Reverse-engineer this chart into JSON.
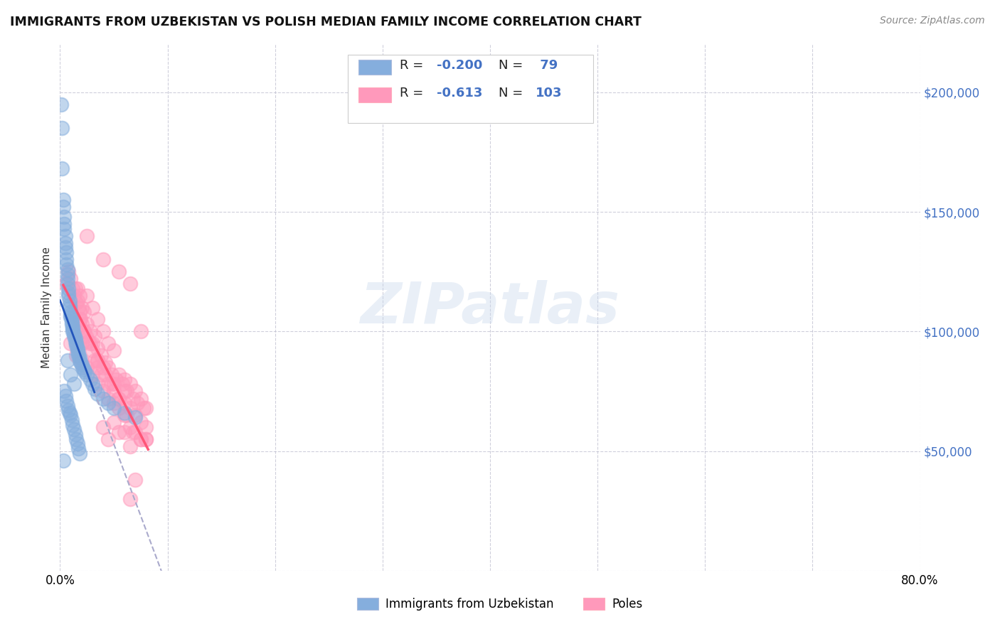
{
  "title": "IMMIGRANTS FROM UZBEKISTAN VS POLISH MEDIAN FAMILY INCOME CORRELATION CHART",
  "source": "Source: ZipAtlas.com",
  "ylabel": "Median Family Income",
  "xlim": [
    0.0,
    0.8
  ],
  "ylim": [
    0,
    220000
  ],
  "yticks": [
    0,
    50000,
    100000,
    150000,
    200000
  ],
  "ytick_labels": [
    "",
    "$50,000",
    "$100,000",
    "$150,000",
    "$200,000"
  ],
  "xticks": [
    0.0,
    0.1,
    0.2,
    0.3,
    0.4,
    0.5,
    0.6,
    0.7,
    0.8
  ],
  "xtick_labels": [
    "0.0%",
    "",
    "",
    "",
    "",
    "",
    "",
    "",
    "80.0%"
  ],
  "legend_labels": [
    "Immigrants from Uzbekistan",
    "Poles"
  ],
  "r_uzb": -0.2,
  "n_uzb": 79,
  "r_pol": -0.613,
  "n_pol": 103,
  "color_uzb": "#85AEDD",
  "color_pol": "#FF99BB",
  "trendline_uzb_color": "#2255BB",
  "trendline_pol_color": "#FF5577",
  "trendline_uzb_dash_color": "#AAAACC",
  "watermark": "ZIPatlas",
  "background_color": "#FFFFFF",
  "uzb_x": [
    0.001,
    0.002,
    0.002,
    0.003,
    0.003,
    0.004,
    0.004,
    0.004,
    0.005,
    0.005,
    0.005,
    0.006,
    0.006,
    0.006,
    0.007,
    0.007,
    0.007,
    0.007,
    0.008,
    0.008,
    0.008,
    0.009,
    0.009,
    0.009,
    0.01,
    0.01,
    0.01,
    0.011,
    0.011,
    0.011,
    0.012,
    0.012,
    0.012,
    0.013,
    0.013,
    0.014,
    0.014,
    0.015,
    0.015,
    0.016,
    0.016,
    0.017,
    0.017,
    0.018,
    0.018,
    0.019,
    0.02,
    0.021,
    0.022,
    0.023,
    0.004,
    0.005,
    0.006,
    0.007,
    0.008,
    0.009,
    0.01,
    0.011,
    0.012,
    0.013,
    0.014,
    0.015,
    0.016,
    0.017,
    0.018,
    0.003,
    0.025,
    0.028,
    0.03,
    0.032,
    0.035,
    0.04,
    0.045,
    0.05,
    0.06,
    0.07,
    0.007,
    0.01,
    0.013
  ],
  "uzb_y": [
    195000,
    185000,
    168000,
    155000,
    152000,
    148000,
    145000,
    143000,
    140000,
    137000,
    135000,
    133000,
    130000,
    128000,
    126000,
    124000,
    122000,
    120000,
    118000,
    116000,
    115000,
    113000,
    111000,
    110000,
    108000,
    107000,
    106000,
    105000,
    104000,
    103000,
    102000,
    101000,
    100000,
    99000,
    98000,
    97000,
    96000,
    95000,
    94000,
    93000,
    92000,
    91000,
    90000,
    89000,
    88000,
    87000,
    86000,
    85000,
    84000,
    83000,
    75000,
    73000,
    71000,
    69000,
    67000,
    66000,
    65000,
    63000,
    61000,
    59000,
    57000,
    55000,
    53000,
    51000,
    49000,
    46000,
    82000,
    80000,
    78000,
    76000,
    74000,
    72000,
    70000,
    68000,
    66000,
    64000,
    88000,
    82000,
    78000
  ],
  "pol_x": [
    0.005,
    0.008,
    0.01,
    0.012,
    0.013,
    0.014,
    0.015,
    0.016,
    0.016,
    0.017,
    0.018,
    0.018,
    0.019,
    0.02,
    0.02,
    0.022,
    0.022,
    0.024,
    0.025,
    0.026,
    0.028,
    0.03,
    0.03,
    0.032,
    0.032,
    0.035,
    0.035,
    0.038,
    0.038,
    0.04,
    0.042,
    0.045,
    0.045,
    0.048,
    0.05,
    0.052,
    0.055,
    0.058,
    0.06,
    0.062,
    0.065,
    0.068,
    0.07,
    0.072,
    0.075,
    0.078,
    0.08,
    0.01,
    0.015,
    0.02,
    0.025,
    0.03,
    0.035,
    0.04,
    0.045,
    0.05,
    0.055,
    0.06,
    0.065,
    0.07,
    0.075,
    0.08,
    0.025,
    0.055,
    0.065,
    0.075,
    0.05,
    0.06,
    0.04,
    0.05,
    0.06,
    0.045,
    0.055,
    0.065,
    0.075,
    0.07,
    0.065,
    0.08,
    0.04,
    0.035,
    0.03,
    0.025,
    0.02,
    0.015,
    0.045,
    0.05,
    0.035,
    0.04,
    0.055,
    0.06,
    0.065,
    0.07,
    0.075,
    0.08,
    0.018,
    0.022,
    0.028,
    0.035,
    0.042,
    0.048,
    0.054,
    0.062,
    0.068
  ],
  "pol_y": [
    120000,
    125000,
    122000,
    118000,
    115000,
    118000,
    112000,
    118000,
    113000,
    110000,
    115000,
    108000,
    105000,
    110000,
    103000,
    108000,
    100000,
    98000,
    103000,
    96000,
    100000,
    95000,
    92000,
    98000,
    88000,
    93000,
    85000,
    90000,
    82000,
    130000,
    87000,
    85000,
    78000,
    82000,
    75000,
    80000,
    72000,
    78000,
    70000,
    75000,
    68000,
    72000,
    65000,
    70000,
    62000,
    68000,
    60000,
    95000,
    90000,
    88000,
    85000,
    82000,
    78000,
    75000,
    72000,
    70000,
    68000,
    65000,
    60000,
    58000,
    55000,
    55000,
    140000,
    125000,
    120000,
    100000,
    78000,
    75000,
    60000,
    62000,
    58000,
    55000,
    58000,
    52000,
    55000,
    38000,
    30000,
    55000,
    100000,
    105000,
    110000,
    115000,
    95000,
    100000,
    95000,
    92000,
    88000,
    85000,
    82000,
    80000,
    78000,
    75000,
    72000,
    68000,
    105000,
    100000,
    95000,
    88000,
    82000,
    78000,
    72000,
    65000,
    58000
  ]
}
